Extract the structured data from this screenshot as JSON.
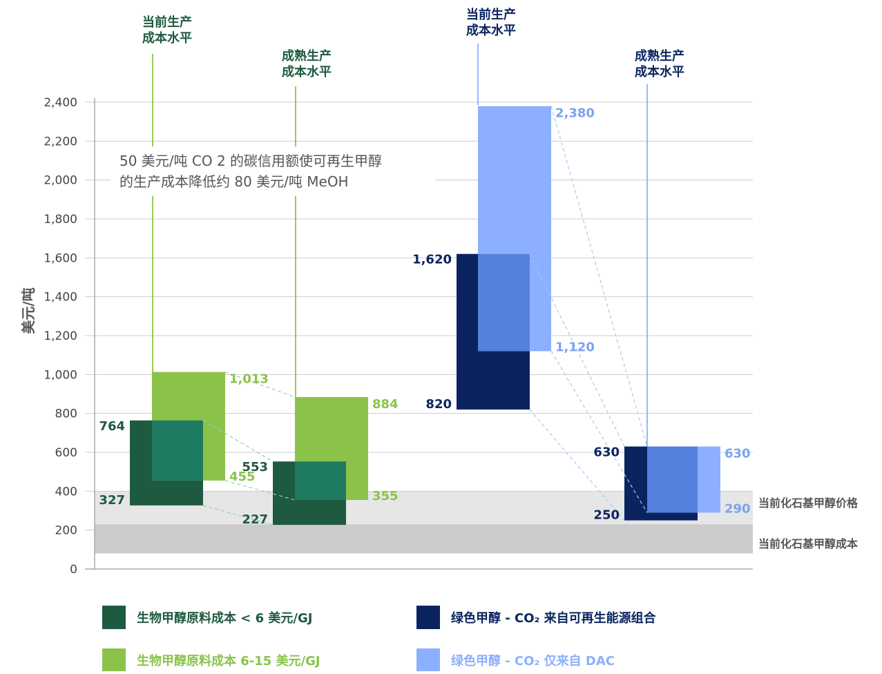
{
  "colors": {
    "bio_low": "#1e5a40",
    "bio_high": "#8bc34a",
    "overlap_bio": "#1f7a62",
    "green_renew": "#0b2460",
    "green_dac": "#8cb0ff",
    "overlap_green": "#5580dd",
    "connector_green": "#8bd3b0",
    "connector_blue": "#a8c8f0",
    "band_price": "#e6e6e6",
    "band_cost": "#cccccc",
    "grid": "#cccccc",
    "label_dark_green": "#1e5a40",
    "label_light_green": "#8bc34a",
    "label_navy": "#0b2460",
    "label_light_blue": "#7aa2f0",
    "level_line_green": "#8bc34a",
    "level_line_blue": "#8cb0ff"
  },
  "column_labels": {
    "bio_current": [
      "当前生产",
      "成本水平"
    ],
    "bio_mature": [
      "成熟生产",
      "成本水平"
    ],
    "green_current": [
      "当前生产",
      "成本水平"
    ],
    "green_mature": [
      "成熟生产",
      "成本水平"
    ]
  },
  "note": {
    "line1": "50 美元/吨 CO 2 的碳信用额使可再生甲醇",
    "line2": "的生产成本降低约 80 美元/吨 MeOH"
  },
  "bands": {
    "price_label": "当前化石基甲醇价格",
    "cost_label": "当前化石基甲醇成本"
  },
  "legend": [
    {
      "label": "生物甲醇原料成本 < 6 美元/GJ",
      "color_key": "bio_low"
    },
    {
      "label": "绿色甲醇 - CO₂ 来自可再生能源组合",
      "color_key": "green_renew"
    },
    {
      "label": "生物甲醇原料成本 6-15 美元/GJ",
      "color_key": "bio_high"
    },
    {
      "label": "绿色甲醇 - CO₂ 仅来自 DAC",
      "color_key": "green_dac"
    }
  ],
  "chart_data": {
    "type": "floating-bar",
    "ylabel": "美元/吨",
    "ylim": [
      0,
      2400
    ],
    "yticks": [
      0,
      200,
      400,
      600,
      800,
      1000,
      1200,
      1400,
      1600,
      1800,
      2000,
      2200,
      2400
    ],
    "ytick_labels": [
      "0",
      "200",
      "400",
      "600",
      "800",
      "1,000",
      "1,200",
      "1,400",
      "1,600",
      "1,800",
      "2,000",
      "2,200",
      "2,400"
    ],
    "grid": true,
    "bands": [
      {
        "name": "当前化石基甲醇价格",
        "low": 180,
        "high": 400
      },
      {
        "name": "当前化石基甲醇成本",
        "low": 80,
        "high": 230
      }
    ],
    "series": [
      {
        "name": "生物甲醇原料成本 < 6 美元/GJ",
        "ranges": [
          {
            "stage": "current",
            "low": 327,
            "high": 764,
            "low_label": "327",
            "high_label": "764"
          },
          {
            "stage": "mature",
            "low": 227,
            "high": 553,
            "low_label": "227",
            "high_label": "553"
          }
        ]
      },
      {
        "name": "生物甲醇原料成本 6-15 美元/GJ",
        "ranges": [
          {
            "stage": "current",
            "low": 455,
            "high": 1013,
            "low_label": "455",
            "high_label": "1,013"
          },
          {
            "stage": "mature",
            "low": 355,
            "high": 884,
            "low_label": "355",
            "high_label": "884"
          }
        ]
      },
      {
        "name": "绿色甲醇 - CO₂ 来自可再生能源组合",
        "ranges": [
          {
            "stage": "current",
            "low": 820,
            "high": 1620,
            "low_label": "820",
            "high_label": "1,620"
          },
          {
            "stage": "mature",
            "low": 250,
            "high": 630,
            "low_label": "250",
            "high_label": "630"
          }
        ]
      },
      {
        "name": "绿色甲醇 - CO₂ 仅来自 DAC",
        "ranges": [
          {
            "stage": "current",
            "low": 1120,
            "high": 2380,
            "low_label": "1,120",
            "high_label": "2,380"
          },
          {
            "stage": "mature",
            "low": 290,
            "high": 630,
            "low_label": "290",
            "high_label": "630"
          }
        ]
      }
    ]
  }
}
